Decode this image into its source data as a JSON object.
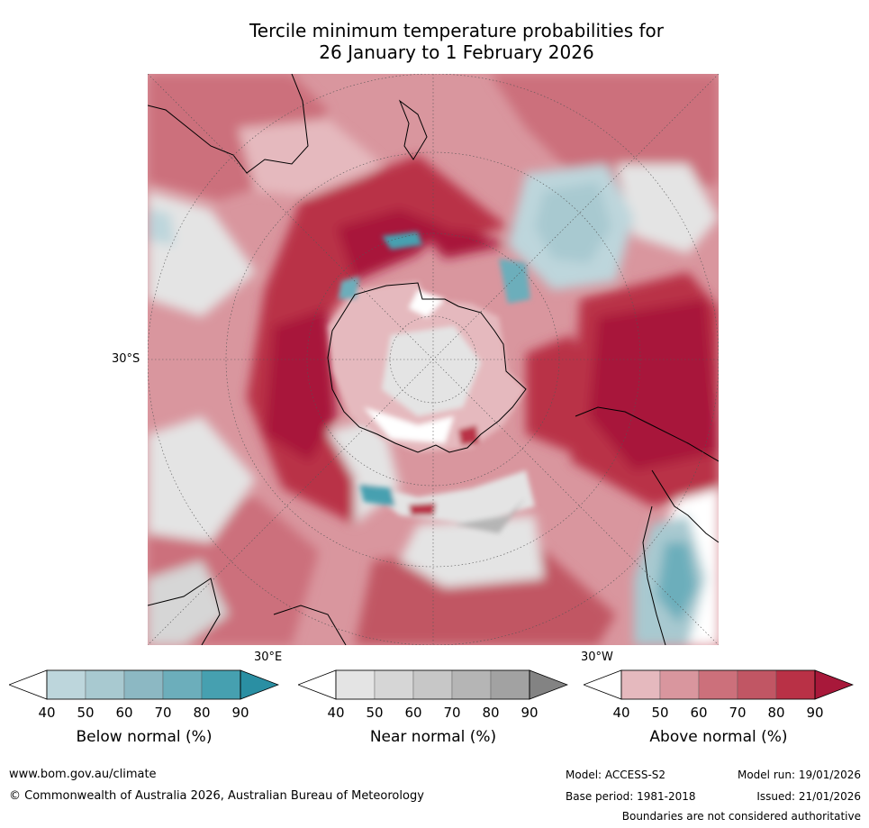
{
  "title_line1": "Tercile minimum temperature probabilities for",
  "title_line2": "26 January to 1 February 2026",
  "map": {
    "lat_label": "30°S",
    "lon_label_east": "30°E",
    "lon_label_west": "30°W",
    "colors": {
      "above": [
        "#e5b9be",
        "#d9969e",
        "#cc707b",
        "#c15664",
        "#b93146",
        "#a8183a"
      ],
      "near": [
        "#e4e4e4",
        "#d6d6d6",
        "#c7c7c7",
        "#b5b5b5",
        "#a2a2a2",
        "#838383"
      ],
      "below": [
        "#bdd6dc",
        "#a8c9d0",
        "#8cb8c3",
        "#6caebb",
        "#46a0b0",
        "#2a8fa3"
      ],
      "white": "#ffffff"
    }
  },
  "colorbars": [
    {
      "title": "Below normal (%)",
      "ticks": [
        "40",
        "50",
        "60",
        "70",
        "80",
        "90"
      ],
      "colors": [
        "#bdd6dc",
        "#a8c9d0",
        "#8cb8c3",
        "#6caebb",
        "#46a0b0"
      ],
      "extend_color": "#2a8fa3"
    },
    {
      "title": "Near normal (%)",
      "ticks": [
        "40",
        "50",
        "60",
        "70",
        "80",
        "90"
      ],
      "colors": [
        "#e4e4e4",
        "#d6d6d6",
        "#c7c7c7",
        "#b5b5b5",
        "#a2a2a2"
      ],
      "extend_color": "#838383"
    },
    {
      "title": "Above normal (%)",
      "ticks": [
        "40",
        "50",
        "60",
        "70",
        "80",
        "90"
      ],
      "colors": [
        "#e5b9be",
        "#d9969e",
        "#cc707b",
        "#c15664",
        "#b93146"
      ],
      "extend_color": "#a8183a"
    }
  ],
  "footer": {
    "website": "www.bom.gov.au/climate",
    "copyright": "© Commonwealth of Australia 2026, Australian Bureau of Meteorology",
    "model": "Model: ACCESS-S2",
    "model_run": "Model run: 19/01/2026",
    "base_period": "Base period: 1981-2018",
    "issued": "Issued: 21/01/2026",
    "disclaimer": "Boundaries are not considered authoritative"
  }
}
